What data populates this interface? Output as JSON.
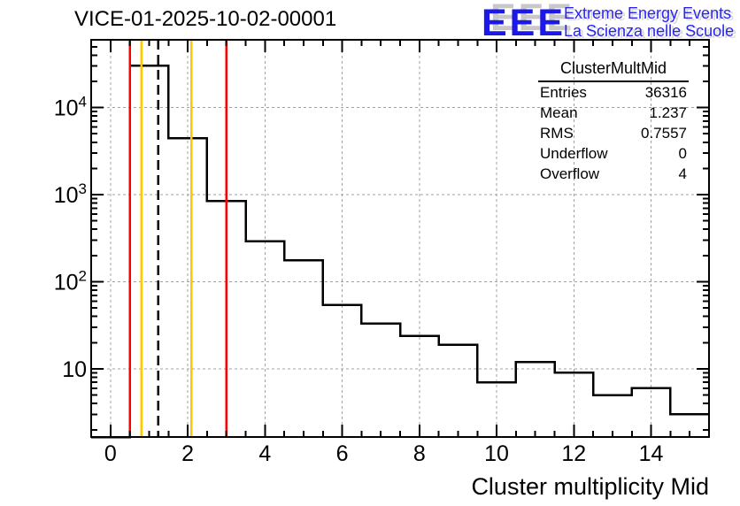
{
  "header": {
    "title": "VICE-01-2025-10-02-00001",
    "logo": {
      "acronym": "EEE",
      "line1": "Extreme Energy Events",
      "line2": "La Scienza nelle Scuole",
      "blue": "#1c18e8",
      "shadow_gray": "#c8c8c8"
    }
  },
  "stats_box": {
    "title": "ClusterMultMid",
    "rows": [
      {
        "label": "Entries",
        "value": "36316"
      },
      {
        "label": "Mean",
        "value": "1.237"
      },
      {
        "label": "RMS",
        "value": "0.7557"
      },
      {
        "label": "Underflow",
        "value": "0"
      },
      {
        "label": "Overflow",
        "value": "4"
      }
    ]
  },
  "chart_data": {
    "type": "bar",
    "title": "VICE-01-2025-10-02-00001",
    "xlabel": "Cluster multiplicity Mid",
    "ylabel": "",
    "yscale": "log",
    "grid": true,
    "legend_position": "none",
    "xlim": [
      -0.5,
      15.5
    ],
    "ylim": [
      1.65,
      60000
    ],
    "bin_width": 1,
    "bin_centers": [
      0,
      1,
      2,
      3,
      4,
      5,
      6,
      7,
      8,
      9,
      10,
      11,
      12,
      13,
      14,
      15
    ],
    "values": [
      0,
      30400,
      4450,
      850,
      290,
      177,
      54,
      33,
      24,
      19,
      7,
      12,
      9,
      5,
      6,
      3
    ],
    "x_major_ticks": [
      0,
      2,
      4,
      6,
      8,
      10,
      12,
      14
    ],
    "x_minor_step": 0.5,
    "y_major_ticks": [
      10,
      100,
      1000,
      10000
    ],
    "y_tick_labels": [
      "10",
      "10^2",
      "10^3",
      "10^4"
    ],
    "histogram_color": "#000000",
    "grid_color": "#a0a0a0",
    "reference_lines": [
      {
        "x": 0.5,
        "color": "#ff0000",
        "style": "solid",
        "name": "red-line-left"
      },
      {
        "x": 0.8,
        "color": "#ffc800",
        "style": "solid",
        "name": "yellow-line-left"
      },
      {
        "x": 1.237,
        "color": "#000000",
        "style": "dashed",
        "name": "mean-dashed-line"
      },
      {
        "x": 2.1,
        "color": "#ffc800",
        "style": "solid",
        "name": "yellow-line-right"
      },
      {
        "x": 3.0,
        "color": "#ff0000",
        "style": "solid",
        "name": "red-line-right"
      }
    ]
  }
}
